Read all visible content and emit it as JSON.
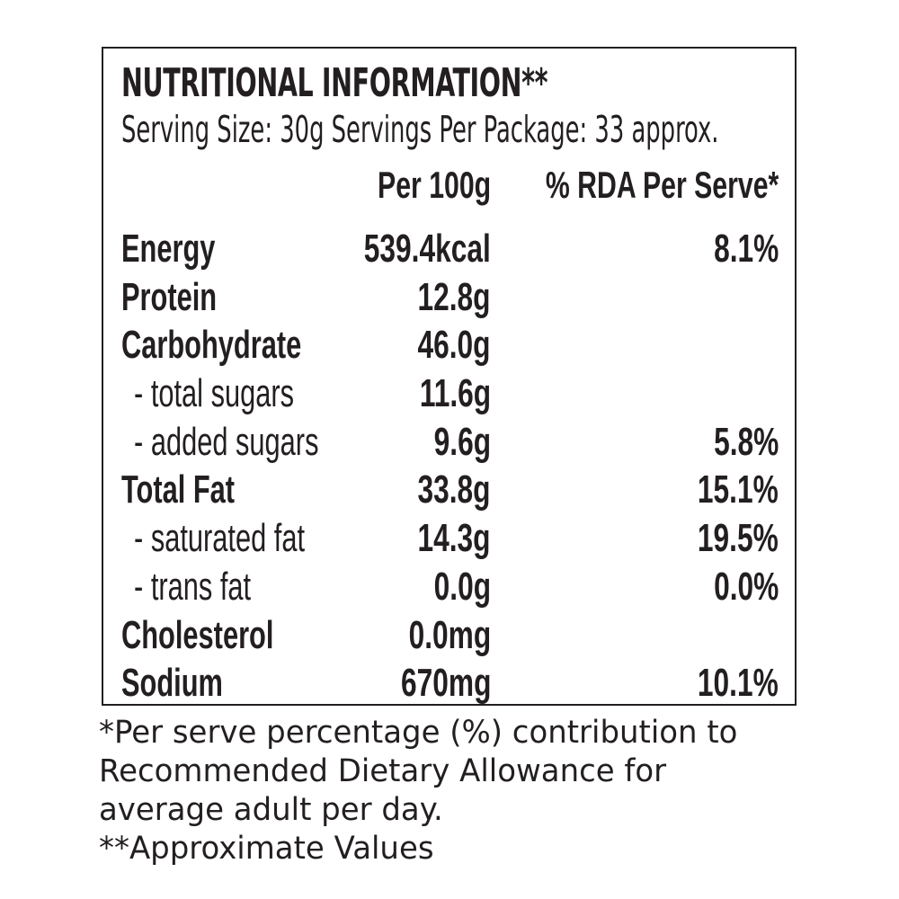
{
  "title": "NUTRITIONAL INFORMATION**",
  "serving_line": "Serving Size: 30g  Servings Per Package: 33 approx.",
  "columns": {
    "per100": "Per 100g",
    "rda": "% RDA Per Serve*"
  },
  "rows": [
    {
      "label": "Energy",
      "per100": "539.4kcal",
      "rda": "8.1%"
    },
    {
      "label": "Protein",
      "per100": "12.8g",
      "rda": ""
    },
    {
      "label": "Carbohydrate",
      "per100": "46.0g",
      "rda": ""
    },
    {
      "label": "- total sugars",
      "per100": "11.6g",
      "rda": ""
    },
    {
      "label": "- added sugars",
      "per100": "9.6g",
      "rda": "5.8%"
    },
    {
      "label": "Total Fat",
      "per100": "33.8g",
      "rda": "15.1%"
    },
    {
      "label": "- saturated fat",
      "per100": "14.3g",
      "rda": "19.5%"
    },
    {
      "label": "- trans fat",
      "per100": "0.0g",
      "rda": "0.0%"
    },
    {
      "label": "Cholesterol",
      "per100": "0.0mg",
      "rda": ""
    },
    {
      "label": "Sodium",
      "per100": "670mg",
      "rda": "10.1%"
    }
  ],
  "footnotes": [
    "*Per serve percentage (%) contribution to",
    "Recommended Dietary Allowance for",
    "average adult per day.",
    "**Approximate Values"
  ]
}
